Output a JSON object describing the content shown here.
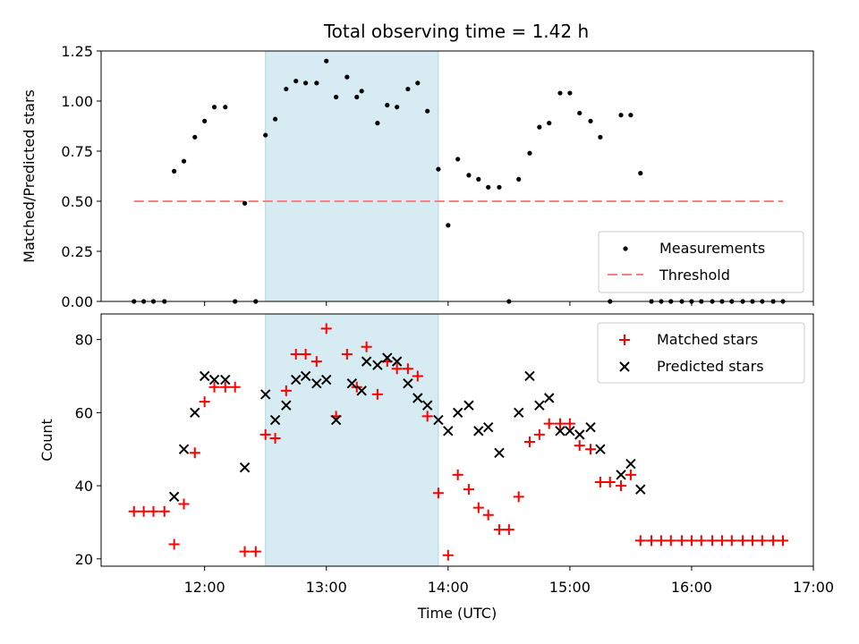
{
  "chart_data": {
    "title": "Total observing time = 1.42 h",
    "xlabel": "Time (UTC)",
    "xlim_hours": [
      11.15,
      17.0
    ],
    "x_ticks": [
      {
        "value": 12.0,
        "label": "12:00"
      },
      {
        "value": 13.0,
        "label": "13:00"
      },
      {
        "value": 14.0,
        "label": "14:00"
      },
      {
        "value": 15.0,
        "label": "15:00"
      },
      {
        "value": 16.0,
        "label": "16:00"
      },
      {
        "value": 17.0,
        "label": "17:00"
      }
    ],
    "shaded_interval_hours": [
      12.5,
      13.92
    ],
    "shade_color": "#add8e6",
    "panels": [
      {
        "type": "scatter",
        "ylabel": "Matched/Predicted stars",
        "ylim": [
          0,
          1.25
        ],
        "y_ticks": [
          {
            "value": 0,
            "label": "0.00"
          },
          {
            "value": 0.25,
            "label": "0.25"
          },
          {
            "value": 0.5,
            "label": "0.50"
          },
          {
            "value": 0.75,
            "label": "0.75"
          },
          {
            "value": 1.0,
            "label": "1.00"
          },
          {
            "value": 1.25,
            "label": "1.25"
          }
        ],
        "legend_position": "bottom-right",
        "series": [
          {
            "name": "Measurements",
            "marker": "dot",
            "color": "#000000",
            "points": [
              [
                11.42,
                0
              ],
              [
                11.5,
                0
              ],
              [
                11.58,
                0
              ],
              [
                11.67,
                0
              ],
              [
                11.75,
                0.65
              ],
              [
                11.83,
                0.7
              ],
              [
                11.92,
                0.82
              ],
              [
                12.0,
                0.9
              ],
              [
                12.08,
                0.97
              ],
              [
                12.17,
                0.97
              ],
              [
                12.25,
                0
              ],
              [
                12.33,
                0.49
              ],
              [
                12.42,
                0
              ],
              [
                12.5,
                0.83
              ],
              [
                12.58,
                0.91
              ],
              [
                12.67,
                1.06
              ],
              [
                12.75,
                1.1
              ],
              [
                12.83,
                1.09
              ],
              [
                12.92,
                1.09
              ],
              [
                13.0,
                1.2
              ],
              [
                13.08,
                1.02
              ],
              [
                13.17,
                1.12
              ],
              [
                13.25,
                1.02
              ],
              [
                13.29,
                1.05
              ],
              [
                13.42,
                0.89
              ],
              [
                13.5,
                0.98
              ],
              [
                13.58,
                0.97
              ],
              [
                13.67,
                1.06
              ],
              [
                13.75,
                1.09
              ],
              [
                13.83,
                0.95
              ],
              [
                13.92,
                0.66
              ],
              [
                14.0,
                0.38
              ],
              [
                14.08,
                0.71
              ],
              [
                14.17,
                0.63
              ],
              [
                14.25,
                0.61
              ],
              [
                14.33,
                0.57
              ],
              [
                14.42,
                0.57
              ],
              [
                14.5,
                0
              ],
              [
                14.58,
                0.61
              ],
              [
                14.67,
                0.74
              ],
              [
                14.75,
                0.87
              ],
              [
                14.83,
                0.89
              ],
              [
                14.92,
                1.04
              ],
              [
                15.0,
                1.04
              ],
              [
                15.08,
                0.94
              ],
              [
                15.17,
                0.9
              ],
              [
                15.25,
                0.82
              ],
              [
                15.33,
                0
              ],
              [
                15.42,
                0.93
              ],
              [
                15.5,
                0.93
              ],
              [
                15.58,
                0.64
              ],
              [
                15.67,
                0
              ],
              [
                15.75,
                0
              ],
              [
                15.83,
                0
              ],
              [
                15.92,
                0
              ],
              [
                16.0,
                0
              ],
              [
                16.08,
                0
              ],
              [
                16.17,
                0
              ],
              [
                16.25,
                0
              ],
              [
                16.33,
                0
              ],
              [
                16.42,
                0
              ],
              [
                16.5,
                0
              ],
              [
                16.58,
                0
              ],
              [
                16.67,
                0
              ],
              [
                16.75,
                0
              ]
            ]
          },
          {
            "name": "Threshold",
            "marker": "dashed-line",
            "color": "#ff7f7f",
            "points": [
              [
                11.42,
                0.5
              ],
              [
                16.75,
                0.5
              ]
            ]
          }
        ]
      },
      {
        "type": "scatter",
        "ylabel": "Count",
        "ylim": [
          18,
          87
        ],
        "y_ticks": [
          {
            "value": 20,
            "label": "20"
          },
          {
            "value": 40,
            "label": "40"
          },
          {
            "value": 60,
            "label": "60"
          },
          {
            "value": 80,
            "label": "80"
          }
        ],
        "legend_position": "top-right",
        "series": [
          {
            "name": "Matched stars",
            "marker": "plus",
            "color": "#ff0000",
            "points": [
              [
                11.42,
                33
              ],
              [
                11.5,
                33
              ],
              [
                11.58,
                33
              ],
              [
                11.67,
                33
              ],
              [
                11.75,
                24
              ],
              [
                11.83,
                35
              ],
              [
                11.92,
                49
              ],
              [
                12.0,
                63
              ],
              [
                12.08,
                67
              ],
              [
                12.17,
                67
              ],
              [
                12.25,
                67
              ],
              [
                12.33,
                22
              ],
              [
                12.42,
                22
              ],
              [
                12.5,
                54
              ],
              [
                12.58,
                53
              ],
              [
                12.67,
                66
              ],
              [
                12.75,
                76
              ],
              [
                12.83,
                76
              ],
              [
                12.92,
                74
              ],
              [
                13.0,
                83
              ],
              [
                13.08,
                59
              ],
              [
                13.17,
                76
              ],
              [
                13.25,
                67
              ],
              [
                13.33,
                78
              ],
              [
                13.42,
                65
              ],
              [
                13.5,
                74
              ],
              [
                13.58,
                72
              ],
              [
                13.67,
                72
              ],
              [
                13.75,
                70
              ],
              [
                13.83,
                59
              ],
              [
                13.92,
                38
              ],
              [
                14.0,
                21
              ],
              [
                14.08,
                43
              ],
              [
                14.17,
                39
              ],
              [
                14.25,
                34
              ],
              [
                14.33,
                32
              ],
              [
                14.42,
                28
              ],
              [
                14.5,
                28
              ],
              [
                14.58,
                37
              ],
              [
                14.67,
                52
              ],
              [
                14.75,
                54
              ],
              [
                14.83,
                57
              ],
              [
                14.92,
                57
              ],
              [
                15.0,
                57
              ],
              [
                15.08,
                51
              ],
              [
                15.17,
                50
              ],
              [
                15.25,
                41
              ],
              [
                15.33,
                41
              ],
              [
                15.42,
                40
              ],
              [
                15.5,
                43
              ],
              [
                15.58,
                25
              ],
              [
                15.67,
                25
              ],
              [
                15.75,
                25
              ],
              [
                15.83,
                25
              ],
              [
                15.92,
                25
              ],
              [
                16.0,
                25
              ],
              [
                16.08,
                25
              ],
              [
                16.17,
                25
              ],
              [
                16.25,
                25
              ],
              [
                16.33,
                25
              ],
              [
                16.42,
                25
              ],
              [
                16.5,
                25
              ],
              [
                16.58,
                25
              ],
              [
                16.67,
                25
              ],
              [
                16.75,
                25
              ]
            ]
          },
          {
            "name": "Predicted stars",
            "marker": "x",
            "color": "#000000",
            "points": [
              [
                11.75,
                37
              ],
              [
                11.83,
                50
              ],
              [
                11.92,
                60
              ],
              [
                12.0,
                70
              ],
              [
                12.08,
                69
              ],
              [
                12.17,
                69
              ],
              [
                12.33,
                45
              ],
              [
                12.5,
                65
              ],
              [
                12.58,
                58
              ],
              [
                12.67,
                62
              ],
              [
                12.75,
                69
              ],
              [
                12.83,
                70
              ],
              [
                12.92,
                68
              ],
              [
                13.0,
                69
              ],
              [
                13.08,
                58
              ],
              [
                13.21,
                68
              ],
              [
                13.29,
                66
              ],
              [
                13.33,
                74
              ],
              [
                13.42,
                73
              ],
              [
                13.5,
                75
              ],
              [
                13.58,
                74
              ],
              [
                13.67,
                68
              ],
              [
                13.75,
                64
              ],
              [
                13.83,
                62
              ],
              [
                13.92,
                58
              ],
              [
                14.0,
                55
              ],
              [
                14.08,
                60
              ],
              [
                14.17,
                62
              ],
              [
                14.25,
                55
              ],
              [
                14.33,
                56
              ],
              [
                14.42,
                49
              ],
              [
                14.58,
                60
              ],
              [
                14.67,
                70
              ],
              [
                14.75,
                62
              ],
              [
                14.83,
                64
              ],
              [
                14.92,
                55
              ],
              [
                15.0,
                55
              ],
              [
                15.08,
                54
              ],
              [
                15.17,
                56
              ],
              [
                15.25,
                50
              ],
              [
                15.42,
                43
              ],
              [
                15.5,
                46
              ],
              [
                15.58,
                39
              ]
            ]
          }
        ]
      }
    ]
  }
}
